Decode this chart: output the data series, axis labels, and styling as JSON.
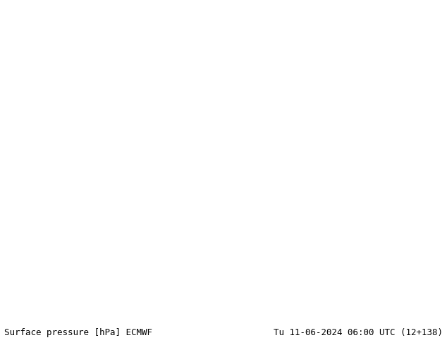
{
  "title_left": "Surface pressure [hPa] ECMWF",
  "title_right": "Tu 11-06-2024 06:00 UTC (12+138)",
  "background_color": "#f0f0e8",
  "map_extent": [
    25,
    145,
    0,
    75
  ],
  "figsize": [
    6.34,
    4.9
  ],
  "dpi": 100,
  "land_color": "#c8d8a8",
  "sea_color": "#a8c8e8",
  "text_color_black": "#000000",
  "text_color_blue": "#0000cc",
  "text_color_red": "#cc0000",
  "bottom_bar_color": "#f0f0f0",
  "font_size_labels": 7,
  "font_size_bottom": 9
}
